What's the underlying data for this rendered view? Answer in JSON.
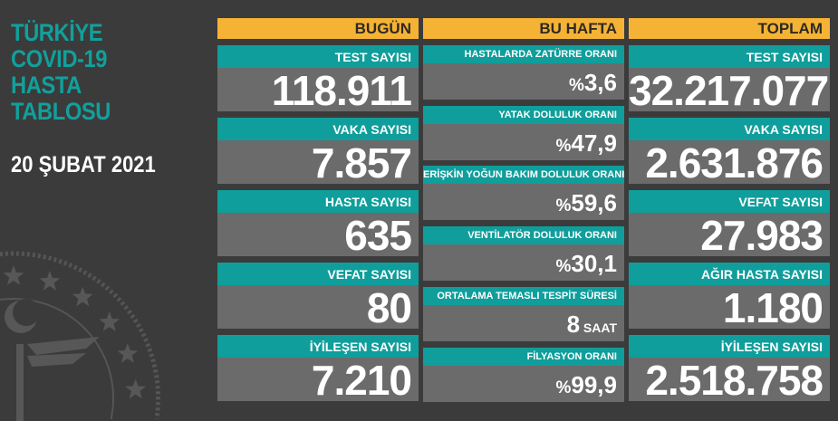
{
  "title_lines": [
    "TÜRKİYE",
    "COVID-19",
    "HASTA",
    "TABLOSU"
  ],
  "date": "20 ŞUBAT 2021",
  "colors": {
    "background": "#3b3b3b",
    "teal": "#0f9e9b",
    "header_yellow": "#f5b335",
    "value_gray": "#6b6b6b"
  },
  "emblem": "ministry-of-health-seal",
  "today": {
    "header": "BUGÜN",
    "items": [
      {
        "label": "TEST SAYISI",
        "value": "118.911"
      },
      {
        "label": "VAKA SAYISI",
        "value": "7.857"
      },
      {
        "label": "HASTA SAYISI",
        "value": "635"
      },
      {
        "label": "VEFAT SAYISI",
        "value": "80"
      },
      {
        "label": "İYİLEŞEN SAYISI",
        "value": "7.210"
      }
    ]
  },
  "week": {
    "header": "BU HAFTA",
    "items": [
      {
        "label": "HASTALARDA ZATÜRRE ORANI",
        "prefix": "%",
        "value": "3,6",
        "suffix": ""
      },
      {
        "label": "YATAK DOLULUK ORANI",
        "prefix": "%",
        "value": "47,9",
        "suffix": ""
      },
      {
        "label": "ERİŞKİN YOĞUN BAKIM DOLULUK ORANI",
        "prefix": "%",
        "value": "59,6",
        "suffix": ""
      },
      {
        "label": "VENTİLATÖR DOLULUK ORANI",
        "prefix": "%",
        "value": "30,1",
        "suffix": ""
      },
      {
        "label": "ORTALAMA TEMASLI TESPİT SÜRESİ",
        "prefix": "",
        "value": "8",
        "suffix": " SAAT"
      },
      {
        "label": "FİLYASYON ORANI",
        "prefix": "%",
        "value": "99,9",
        "suffix": ""
      }
    ]
  },
  "total": {
    "header": "TOPLAM",
    "items": [
      {
        "label": "TEST SAYISI",
        "value": "32.217.077"
      },
      {
        "label": "VAKA SAYISI",
        "value": "2.631.876"
      },
      {
        "label": "VEFAT SAYISI",
        "value": "27.983"
      },
      {
        "label": "AĞIR HASTA SAYISI",
        "value": "1.180"
      },
      {
        "label": "İYİLEŞEN SAYISI",
        "value": "2.518.758"
      }
    ]
  }
}
